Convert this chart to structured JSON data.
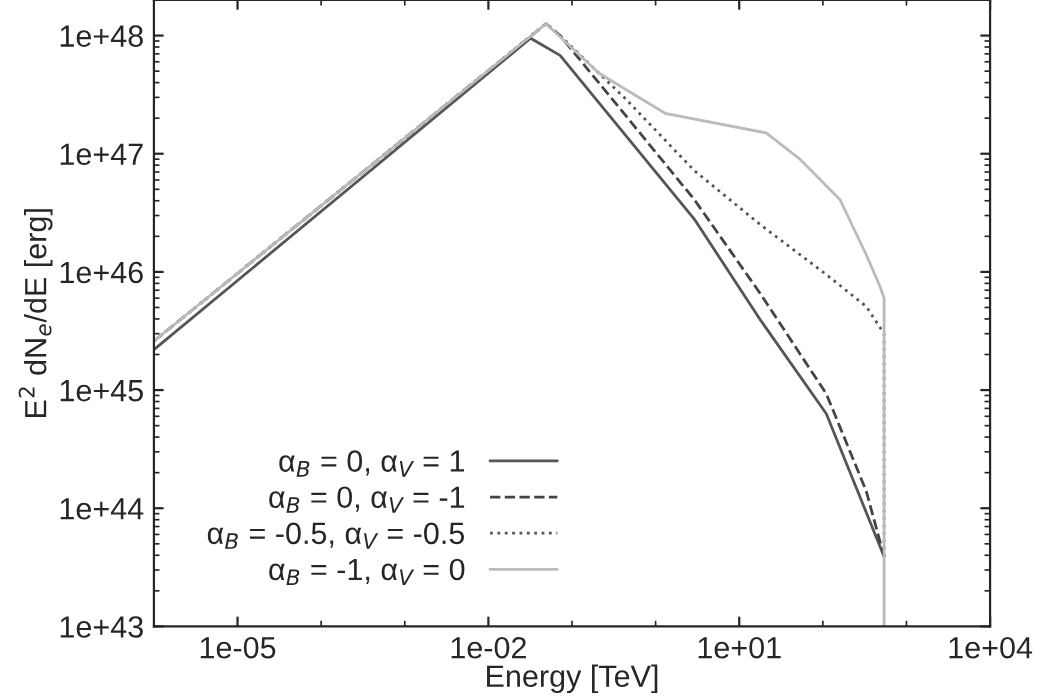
{
  "chart_data": {
    "type": "line",
    "xlabel": "Energy [TeV]",
    "ylabel": "E$^{2}$ dN$_{e}$/dE [erg]",
    "log": "xy",
    "grid": false,
    "legend": "bottom left",
    "xlim": [
      1e-06,
      10000
    ],
    "ylim": [
      1e+43,
      2e+48
    ],
    "xticks": [
      {
        "value": 1e-05,
        "label": "1e-05"
      },
      {
        "value": 0.01,
        "label": "1e-02"
      },
      {
        "value": 10,
        "label": "1e+01"
      },
      {
        "value": 10000,
        "label": "1e+04"
      }
    ],
    "yticks": [
      {
        "value": 1e+43,
        "label": "1e+43"
      },
      {
        "value": 1e+44,
        "label": "1e+44"
      },
      {
        "value": 1e+45,
        "label": "1e+45"
      },
      {
        "value": 1e+46,
        "label": "1e+46"
      },
      {
        "value": 1e+47,
        "label": "1e+47"
      },
      {
        "value": 1e+48,
        "label": "1e+48"
      }
    ],
    "series": [
      {
        "name": "α$_{B}$ = 0, α$_{V}$ = 1",
        "color": "#555555",
        "line_style": "solid",
        "x": [
          1e-06,
          0.032,
          0.072,
          2.9,
          18,
          110,
          480,
          540
        ],
        "values": [
          2.2e+45,
          9.5e+47,
          6.8e+47,
          2.8e+46,
          3.9e+45,
          6.3e+44,
          4.8e+43,
          3.9e+43
        ]
      },
      {
        "name": "α$_{B}$ = 0, α$_{V}$ = -1",
        "color": "#444444",
        "line_style": "dashed",
        "x": [
          1e-06,
          0.049,
          0.072,
          0.44,
          2.9,
          18,
          110,
          330,
          540
        ],
        "values": [
          2.6e+45,
          1.26e+48,
          1e+48,
          2.1e+47,
          4.1e+46,
          6.5e+45,
          9.3e+44,
          1.4e+44,
          3.9e+43
        ]
      },
      {
        "name": "α$_{B}$ = -0.5, α$_{V}$ = -0.5",
        "color": "#555555",
        "line_style": "dotted",
        "x": [
          1e-06,
          0.049,
          0.072,
          0.44,
          2.9,
          18,
          110,
          330,
          540,
          540
        ],
        "values": [
          2.6e+45,
          1.26e+48,
          1e+48,
          2.9e+47,
          7.2e+46,
          2.5e+46,
          9.5e+45,
          5.1e+45,
          3e+45,
          3.9e+43
        ]
      },
      {
        "name": "α$_{B}$ = -1, α$_{V}$ = 0",
        "color": "#bbbbbb",
        "line_style": "solid",
        "x": [
          1e-06,
          0.049,
          0.21,
          1.3,
          21,
          54,
          160,
          330,
          480,
          540,
          540
        ],
        "values": [
          2.6e+45,
          1.26e+48,
          4.8e+47,
          2.2e+47,
          1.5e+47,
          8.9e+46,
          4.1e+46,
          1.4e+46,
          7.6e+45,
          6e+45,
          1e+43
        ]
      }
    ]
  }
}
